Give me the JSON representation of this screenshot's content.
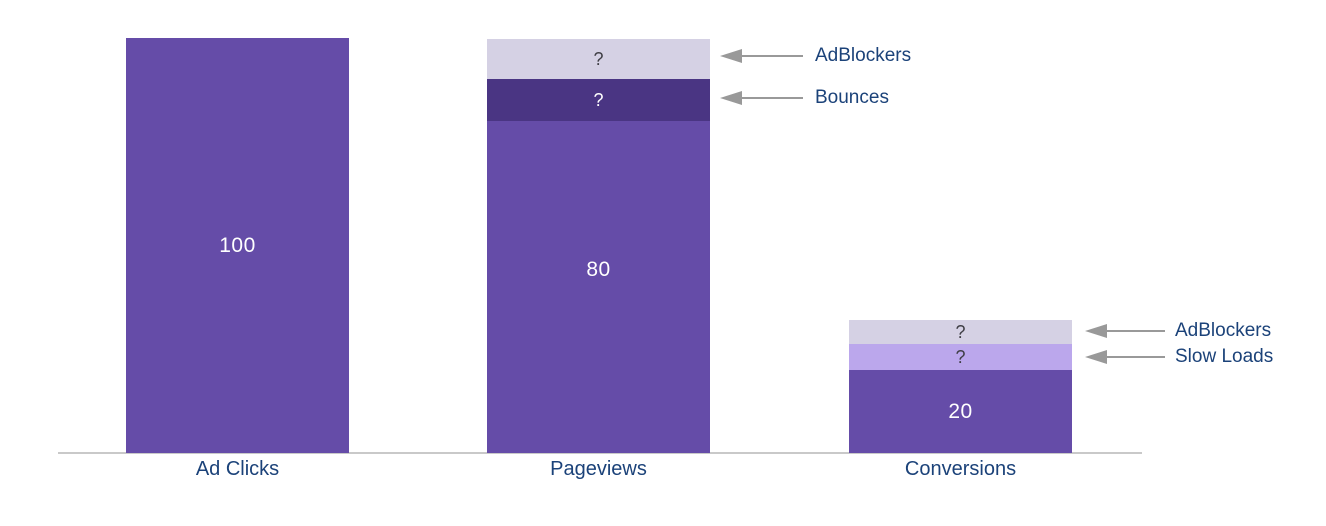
{
  "chart_data": {
    "type": "bar",
    "subtype": "stacked-funnel-columns",
    "title": "",
    "xlabel": "",
    "ylabel": "",
    "ylim": [
      0,
      100
    ],
    "grid": false,
    "legend": "none",
    "categories": [
      "Ad Clicks",
      "Pageviews",
      "Conversions"
    ],
    "bars": [
      {
        "category": "Ad Clicks",
        "total_units": 100,
        "segments": [
          {
            "name": "Ad Clicks",
            "label": "100",
            "value": 100,
            "units": 100,
            "color": "#654CA8",
            "label_color": "#FFFFFF"
          }
        ]
      },
      {
        "category": "Pageviews",
        "total_units": 100,
        "segments": [
          {
            "name": "AdBlockers",
            "label": "?",
            "value": null,
            "units": 9.6,
            "color": "#D5D1E4",
            "label_color": "#3F3E45"
          },
          {
            "name": "Bounces",
            "label": "?",
            "value": null,
            "units": 10.1,
            "color": "#4A3583",
            "label_color": "#FFFFFF"
          },
          {
            "name": "Pageviews",
            "label": "80",
            "value": 80,
            "units": 80,
            "color": "#654CA8",
            "label_color": "#FFFFFF"
          }
        ]
      },
      {
        "category": "Conversions",
        "total_units": 32,
        "segments": [
          {
            "name": "AdBlockers",
            "label": "?",
            "value": null,
            "units": 5.8,
            "color": "#D5D1E4",
            "label_color": "#3F3E45"
          },
          {
            "name": "Slow Loads",
            "label": "?",
            "value": null,
            "units": 6.3,
            "color": "#BBA7EC",
            "label_color": "#3F3E45"
          },
          {
            "name": "Conversions",
            "label": "20",
            "value": 20,
            "units": 20,
            "color": "#654CA8",
            "label_color": "#FFFFFF"
          }
        ]
      }
    ],
    "annotations": [
      {
        "label": "AdBlockers",
        "bar": "Pageviews",
        "segment": "AdBlockers"
      },
      {
        "label": "Bounces",
        "bar": "Pageviews",
        "segment": "Bounces"
      },
      {
        "label": "AdBlockers",
        "bar": "Conversions",
        "segment": "AdBlockers"
      },
      {
        "label": "Slow Loads",
        "bar": "Conversions",
        "segment": "Slow Loads"
      }
    ],
    "colors": {
      "bar_main": "#654CA8",
      "segment_dark_purple": "#4A3583",
      "segment_lavender": "#D5D1E4",
      "segment_light_purple": "#BBA7EC",
      "category_label": "#1B4279",
      "annotation_label": "#1B4279",
      "arrow": "#999999",
      "axis_line": "#C9C9C9",
      "value_label": "#FFFFFF",
      "unknown_label": "#3F3E45"
    }
  }
}
